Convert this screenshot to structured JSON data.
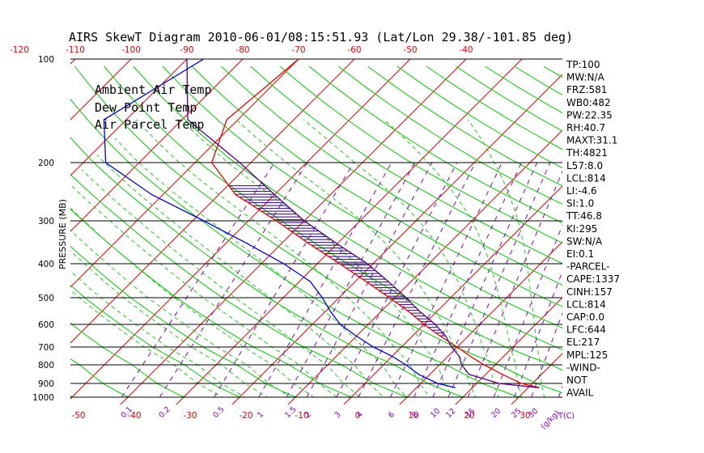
{
  "title": "AIRS SkewT Diagram 2010-06-01/08:15:51.93 (Lat/Lon 29.38/-101.85 deg)",
  "y_label": "PRESSURE (MB)",
  "legend": [
    {
      "label": "Ambient Air Temp",
      "color": "#ee0000"
    },
    {
      "label": "Dew Point Temp",
      "color": "#0000dd"
    },
    {
      "label": "Air Parcel Temp",
      "color": "#8800cc"
    }
  ],
  "colors": {
    "isotherm": "#ee0000",
    "dry_adiabat": "#00cc00",
    "moist_adiabat": "#22cc22",
    "mixing_ratio": "#8800cc",
    "temperature": "#ee0000",
    "dewpoint": "#0000dd",
    "parcel": "#55007a",
    "hatch": "#2a006e",
    "isobar": "#000000"
  },
  "indices": [
    "TP:100",
    "MW:N/A",
    "FRZ:581",
    "WB0:482",
    "PW:22.35",
    "RH:40.7",
    "MAXT:31.1",
    "TH:4821",
    "L57:8.0",
    "LCL:814",
    "LI:-4.6",
    "SI:1.0",
    "TT:46.8",
    "KI:295",
    "SW:N/A",
    "EI:0.1",
    "-PARCEL-",
    "CAPE:1337",
    "CINH:157",
    "LCL:814",
    "CAP:0.0",
    "LFC:644",
    "EL:217",
    "MPL:125",
    "-WIND-",
    "NOT",
    "AVAIL"
  ],
  "chart_data": {
    "type": "line",
    "title": "AIRS SkewT Diagram 2010-06-01/08:15:51.93 (Lat/Lon 29.38/-101.85 deg)",
    "ylabel": "PRESSURE (MB)",
    "xlabel": "T(C)",
    "pressure_ticks": [
      100,
      200,
      300,
      400,
      500,
      600,
      700,
      800,
      900,
      1000
    ],
    "pressure_range": [
      100,
      1000
    ],
    "top_temperature_ticks": [
      -120,
      -110,
      -100,
      -90,
      -80,
      -70,
      -60,
      -50,
      -40
    ],
    "bottom_temperature_ticks": [
      -50,
      -40,
      -30,
      -20,
      -10,
      0,
      10,
      20,
      30
    ],
    "mixing_ratio_ticks": [
      "0.1",
      "0.2",
      "0.5",
      "1",
      "1.5",
      "2",
      "3",
      "4",
      "6",
      "8",
      "10",
      "12",
      "15",
      "20",
      "25",
      "30",
      "40"
    ],
    "mixing_ratio_unit": "(g/kg)",
    "grid": true,
    "legend_position": "top-left",
    "series": [
      {
        "name": "Ambient Air Temp",
        "points": [
          [
            100,
            -70
          ],
          [
            150,
            -72
          ],
          [
            200,
            -67
          ],
          [
            250,
            -57
          ],
          [
            300,
            -45
          ],
          [
            350,
            -35
          ],
          [
            400,
            -26
          ],
          [
            450,
            -18
          ],
          [
            500,
            -11
          ],
          [
            550,
            -5
          ],
          [
            600,
            0
          ],
          [
            650,
            5
          ],
          [
            700,
            10
          ],
          [
            750,
            14
          ],
          [
            800,
            18
          ],
          [
            850,
            23
          ],
          [
            900,
            28
          ],
          [
            930,
            32
          ]
        ]
      },
      {
        "name": "Dew Point Temp",
        "points": [
          [
            100,
            -87
          ],
          [
            150,
            -94
          ],
          [
            200,
            -86
          ],
          [
            250,
            -72
          ],
          [
            300,
            -58
          ],
          [
            350,
            -46
          ],
          [
            400,
            -36
          ],
          [
            450,
            -28
          ],
          [
            500,
            -23
          ],
          [
            550,
            -19
          ],
          [
            600,
            -15
          ],
          [
            650,
            -10
          ],
          [
            700,
            -5
          ],
          [
            750,
            0
          ],
          [
            800,
            4
          ],
          [
            850,
            8
          ],
          [
            900,
            13
          ],
          [
            930,
            17
          ]
        ]
      },
      {
        "name": "Air Parcel Temp",
        "points": [
          [
            100,
            -90
          ],
          [
            150,
            -79
          ],
          [
            200,
            -62
          ],
          [
            250,
            -50
          ],
          [
            300,
            -40
          ],
          [
            350,
            -30
          ],
          [
            400,
            -21
          ],
          [
            450,
            -14
          ],
          [
            500,
            -8
          ],
          [
            550,
            -3
          ],
          [
            600,
            2
          ],
          [
            650,
            6
          ],
          [
            700,
            9
          ],
          [
            750,
            12
          ],
          [
            800,
            14
          ],
          [
            850,
            17
          ],
          [
            900,
            24
          ],
          [
            930,
            32
          ]
        ]
      }
    ]
  }
}
